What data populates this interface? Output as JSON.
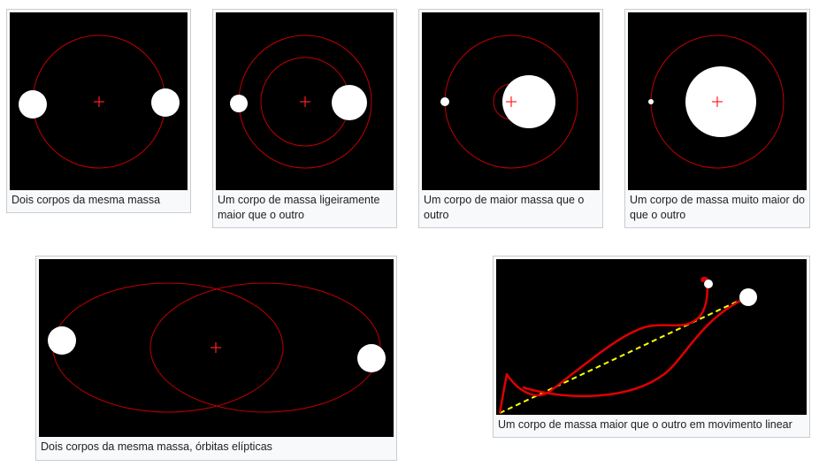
{
  "gallery": {
    "items": [
      {
        "caption": "Dois corpos da mesma massa"
      },
      {
        "caption": "Um corpo de massa ligeiramente maior que o outro"
      },
      {
        "caption": "Um corpo de maior massa que o outro"
      },
      {
        "caption": "Um corpo de massa muito maior do que o outro"
      },
      {
        "caption": "Dois corpos da mesma massa, órbitas elípticas"
      },
      {
        "caption": "Um corpo de massa maior que o outro em movimento linear"
      }
    ]
  },
  "colors": {
    "background": "#000000",
    "orbit": "#cc0000",
    "barycenter": "#ff2020",
    "body": "#ffffff",
    "trail": "#e00000",
    "linear_path": "#ffff00"
  }
}
